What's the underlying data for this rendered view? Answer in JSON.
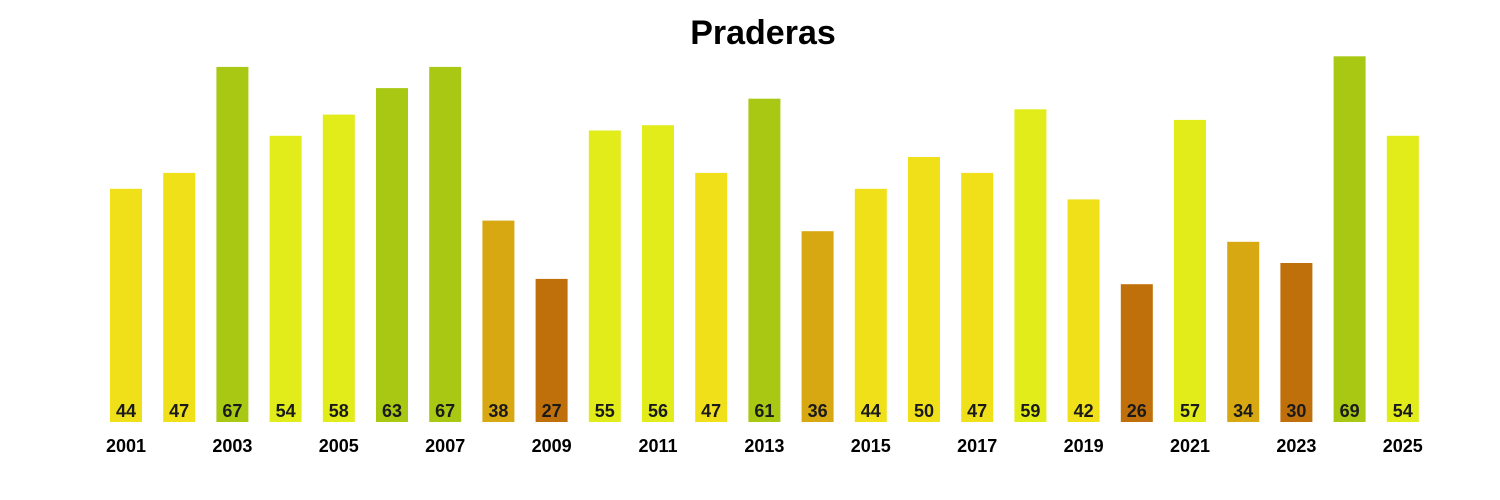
{
  "chart_data": {
    "type": "bar",
    "title": "Praderas",
    "xlabel": "",
    "ylabel": "",
    "categories": [
      "2001",
      "2002",
      "2003",
      "2004",
      "2005",
      "2006",
      "2007",
      "2008",
      "2009",
      "2010",
      "2011",
      "2012",
      "2013",
      "2014",
      "2015",
      "2016",
      "2017",
      "2018",
      "2019",
      "2020",
      "2021",
      "2022",
      "2023",
      "2024",
      "2025"
    ],
    "values": [
      44,
      47,
      67,
      54,
      58,
      63,
      67,
      38,
      27,
      55,
      56,
      47,
      61,
      36,
      44,
      50,
      47,
      59,
      42,
      26,
      57,
      34,
      30,
      69,
      54
    ],
    "tick_labels": [
      "2001",
      "2003",
      "2005",
      "2007",
      "2009",
      "2011",
      "2013",
      "2015",
      "2017",
      "2019",
      "2021",
      "2023",
      "2025"
    ],
    "ylim": [
      0,
      69
    ],
    "grid": false,
    "legend": "none",
    "colors": {
      "very_low": "#c0700a",
      "low": "#d8a812",
      "mid": "#f0e01a",
      "high": "#e2ec1a",
      "very_high": "#a8c814"
    }
  }
}
